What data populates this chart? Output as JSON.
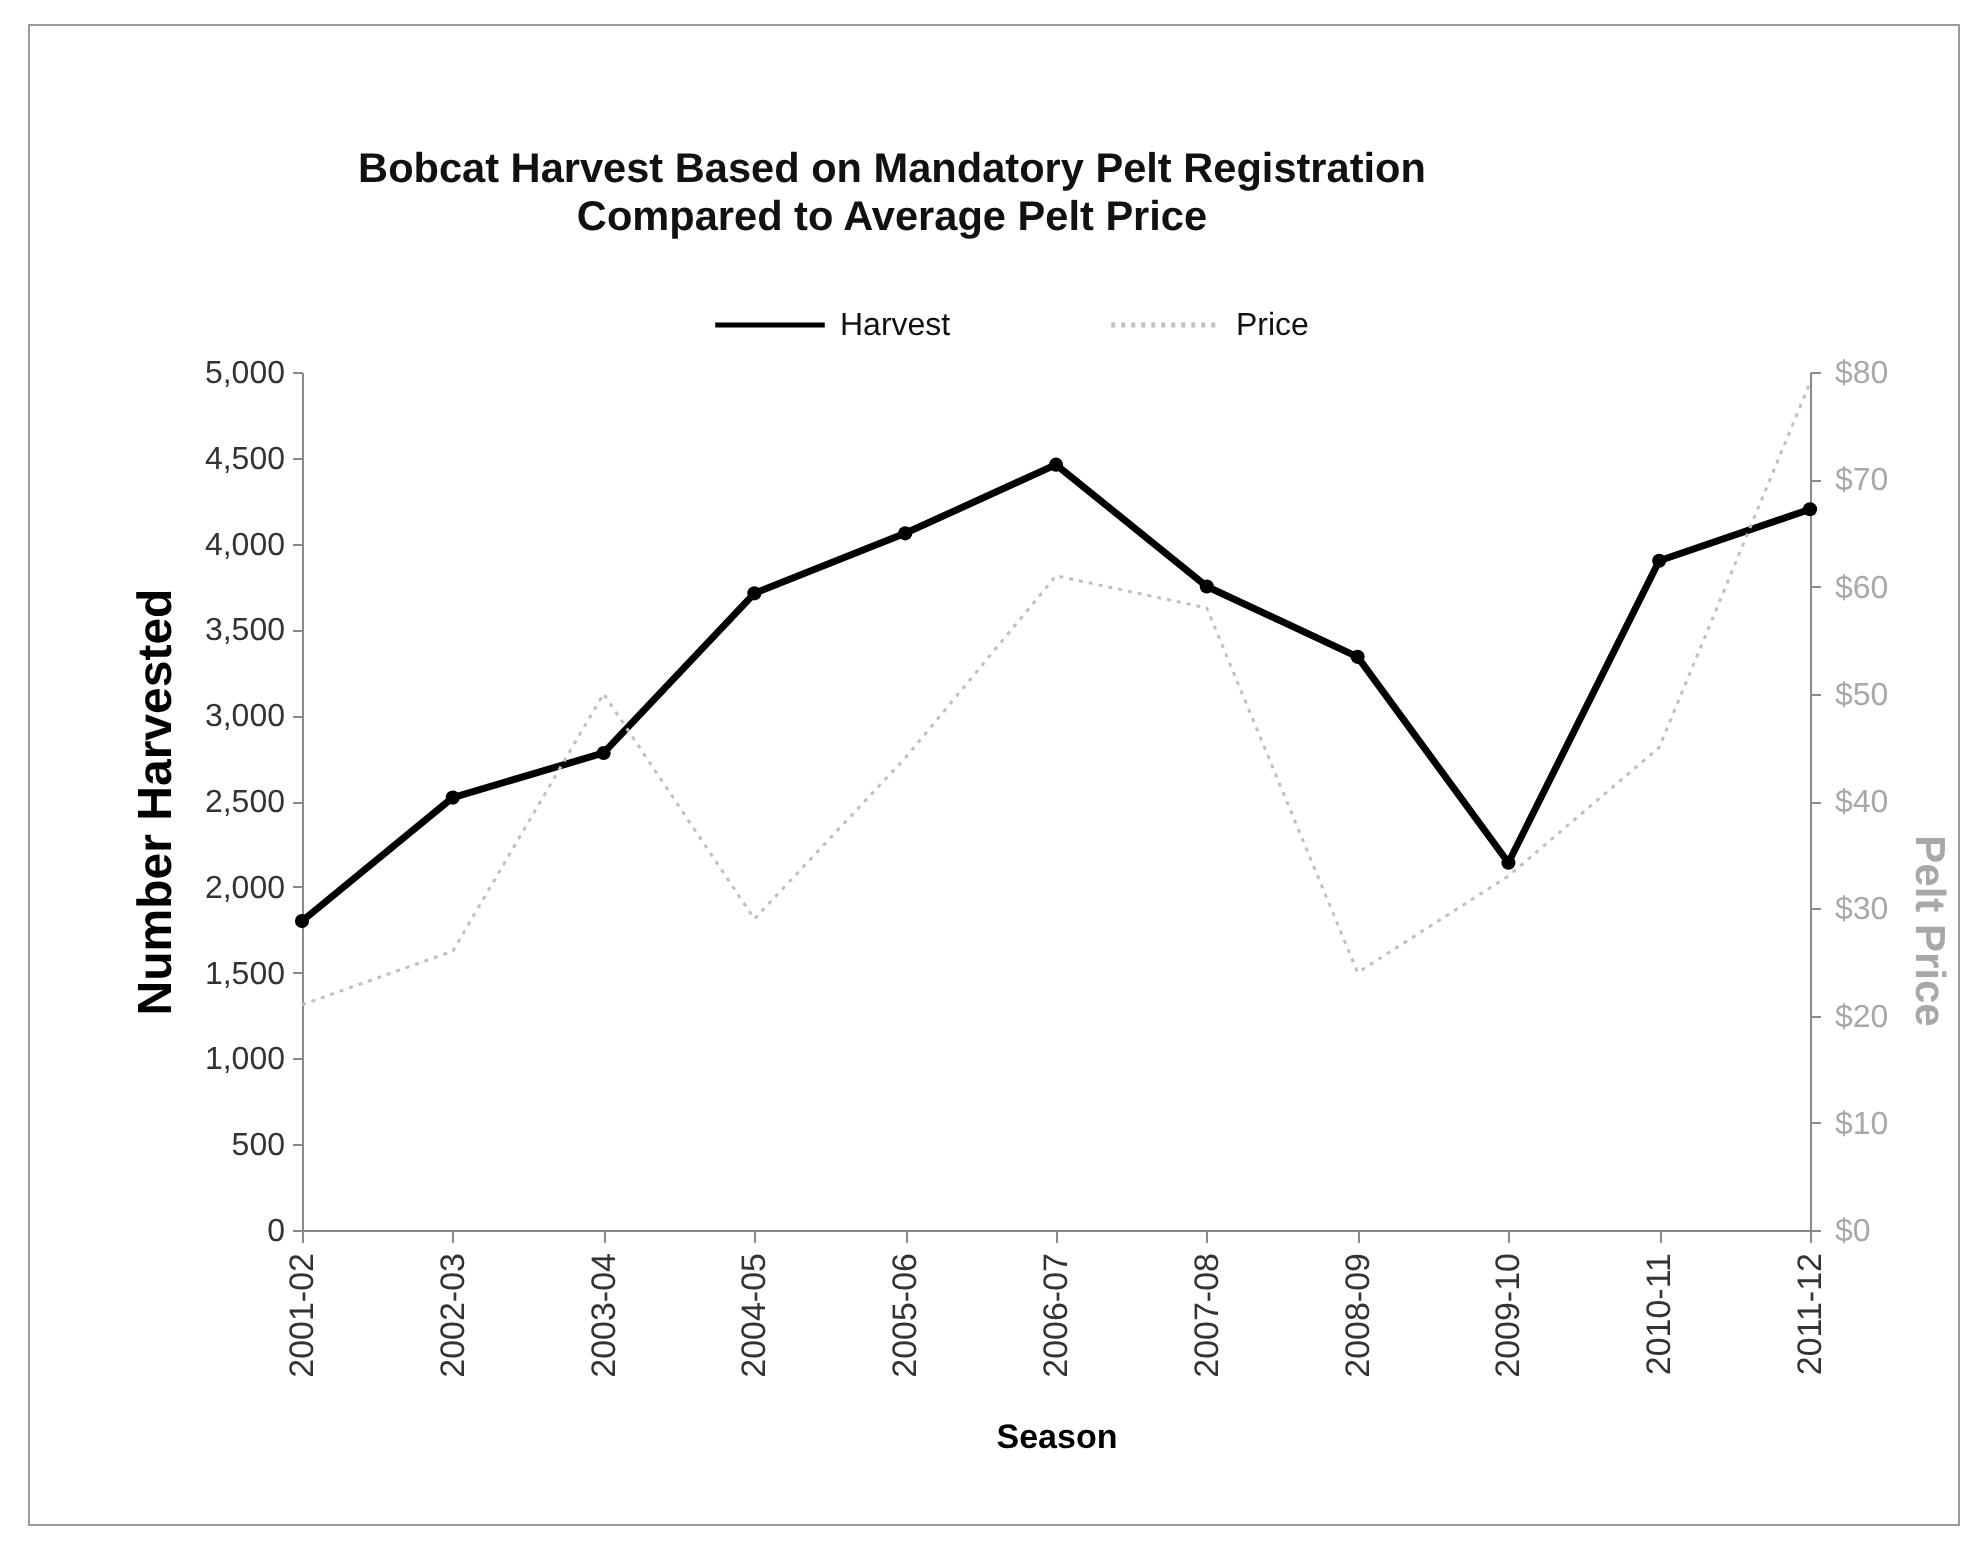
{
  "chart_data": {
    "type": "line",
    "title": "Bobcat Harvest Based on Mandatory Pelt Registration\nCompared to Average Pelt Price",
    "xlabel": "Season",
    "ylabel": "Number Harvested",
    "y2label": "Pelt Price",
    "categories": [
      "2001-02",
      "2002-03",
      "2003-04",
      "2004-05",
      "2005-06",
      "2006-07",
      "2007-08",
      "2008-09",
      "2009-10",
      "2010-11",
      "2011-12"
    ],
    "series": [
      {
        "name": "Harvest",
        "color": "#000000",
        "marker": "circle",
        "line_style": "solid",
        "values": [
          1800,
          2520,
          2780,
          3710,
          4060,
          4460,
          3750,
          3340,
          2140,
          3900,
          4200
        ]
      },
      {
        "name": "Price",
        "color": "#c0c0c0",
        "marker": "none",
        "line_style": "dotted",
        "axis": "y2",
        "values": [
          21,
          26,
          50,
          29,
          44,
          61,
          58,
          24,
          33,
          45,
          79
        ]
      }
    ],
    "ylim": [
      0,
      5000
    ],
    "yticks": [
      0,
      500,
      {
        "value": 1000,
        "label": "1,000"
      },
      {
        "value": 1500,
        "label": "1,500"
      },
      {
        "value": 2000,
        "label": "2,000"
      },
      {
        "value": 2500,
        "label": "2,500"
      },
      {
        "value": 3000,
        "label": "3,000"
      },
      {
        "value": 3500,
        "label": "3,500"
      },
      {
        "value": 4000,
        "label": "4,000"
      },
      {
        "value": 4500,
        "label": "4,500"
      },
      {
        "value": 5000,
        "label": "5,000"
      }
    ],
    "y2lim": [
      0,
      80
    ],
    "y2ticks": [
      {
        "value": 0,
        "label": "$0"
      },
      {
        "value": 10,
        "label": "$10"
      },
      {
        "value": 20,
        "label": "$20"
      },
      {
        "value": 30,
        "label": "$30"
      },
      {
        "value": 40,
        "label": "$40"
      },
      {
        "value": 50,
        "label": "$50"
      },
      {
        "value": 60,
        "label": "$60"
      },
      {
        "value": 70,
        "label": "$70"
      },
      {
        "value": 80,
        "label": "$80"
      }
    ],
    "legend": "top"
  }
}
